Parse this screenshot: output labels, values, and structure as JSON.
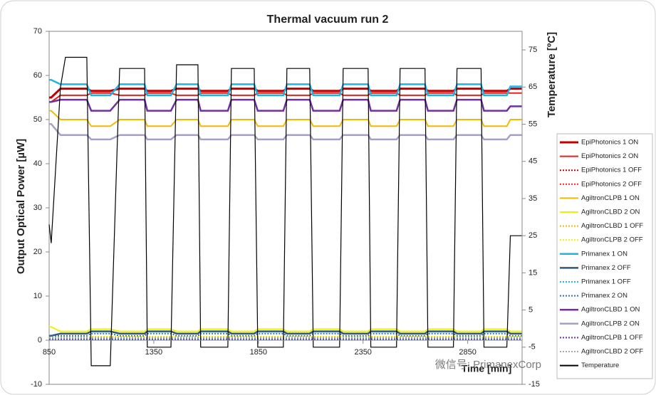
{
  "chart_data": {
    "type": "line",
    "title": "Thermal vacuum run 2",
    "y_label": "Output Optical Power [µW]",
    "y2_label": "Temperature [ºC]",
    "x_label": "Time [min]",
    "watermark": "微信号: PrimanexCorp",
    "xlim": [
      850,
      3110
    ],
    "xticks": [
      850,
      1350,
      1850,
      2350,
      2850
    ],
    "ylim": [
      -10,
      70
    ],
    "yticks": [
      -10,
      0,
      10,
      20,
      30,
      40,
      50,
      60,
      70
    ],
    "y2lim": [
      -15,
      80
    ],
    "y2ticks": [
      -15,
      -5,
      5,
      15,
      25,
      35,
      45,
      55,
      65,
      75
    ],
    "grid": false,
    "legend": "right",
    "x": [
      850,
      860,
      904,
      928,
      1030,
      1051,
      1142,
      1187,
      1306,
      1319,
      1432,
      1459,
      1561,
      1574,
      1704,
      1721,
      1830,
      1847,
      1969,
      1986,
      2095,
      2112,
      2238,
      2255,
      2374,
      2387,
      2510,
      2527,
      2646,
      2660,
      2782,
      2799,
      2914,
      2928,
      3037,
      3054,
      3108
    ],
    "series": [
      {
        "name": "EpiPhotonics 1 ON",
        "color": "#c00000",
        "width": 3,
        "dotted": false,
        "values": [
          55,
          55,
          57,
          57,
          57,
          56.5,
          56.5,
          57,
          57,
          56.5,
          56.5,
          57,
          57,
          56.5,
          56.5,
          57,
          57,
          56.5,
          56.5,
          57,
          57,
          56.5,
          56.5,
          57,
          57,
          56.5,
          56.5,
          57,
          57,
          56.5,
          56.5,
          57,
          57,
          56.5,
          56.5,
          57,
          57
        ]
      },
      {
        "name": "EpiPhotonics 2 ON",
        "color": "#e8201c",
        "width": 2,
        "dotted": false,
        "values": [
          54,
          54,
          55.5,
          55.5,
          55.5,
          56,
          56,
          55.5,
          55.5,
          56,
          56,
          55.5,
          55.5,
          56,
          56,
          55.5,
          55.5,
          56,
          56,
          55.5,
          55.5,
          56,
          56,
          55.5,
          55.5,
          56,
          56,
          55.5,
          55.5,
          56,
          56,
          55.5,
          55.5,
          56,
          56,
          56,
          56
        ]
      },
      {
        "name": "EpiPhotonics 1 OFF",
        "color": "#c00000",
        "width": 2,
        "dotted": true,
        "values": [
          0.3,
          0.3,
          0.3,
          0.3,
          0.3,
          0.3,
          0.3,
          0.3,
          0.3,
          0.3,
          0.3,
          0.3,
          0.3,
          0.3,
          0.3,
          0.3,
          0.3,
          0.3,
          0.3,
          0.3,
          0.3,
          0.3,
          0.3,
          0.3,
          0.3,
          0.3,
          0.3,
          0.3,
          0.3,
          0.3,
          0.3,
          0.3,
          0.3,
          0.3,
          0.3,
          0.3,
          0.3
        ]
      },
      {
        "name": "EpiPhotonics 2 OFF",
        "color": "#ff2020",
        "width": 2,
        "dotted": true,
        "values": [
          0.5,
          0.5,
          0.5,
          0.5,
          0.5,
          0.5,
          0.5,
          0.5,
          0.5,
          0.5,
          0.5,
          0.5,
          0.5,
          0.5,
          0.5,
          0.5,
          0.5,
          0.5,
          0.5,
          0.5,
          0.5,
          0.5,
          0.5,
          0.5,
          0.5,
          0.5,
          0.5,
          0.5,
          0.5,
          0.5,
          0.5,
          0.5,
          0.5,
          0.5,
          0.5,
          0.5,
          0.5
        ]
      },
      {
        "name": "AgiltronCLPB 1 ON",
        "color": "#f5b800",
        "width": 2,
        "dotted": false,
        "values": [
          52,
          52,
          50,
          50,
          50,
          48.5,
          48.5,
          50,
          50,
          48.5,
          48.5,
          50,
          50,
          48.5,
          48.5,
          50,
          50,
          48.5,
          48.5,
          50,
          50,
          48.5,
          48.5,
          50,
          50,
          48.5,
          48.5,
          50,
          50,
          48.5,
          48.5,
          50,
          50,
          48.5,
          48.5,
          50,
          50
        ]
      },
      {
        "name": "AgiltronCLBD 2 ON",
        "color": "#f0f000",
        "width": 2,
        "dotted": false,
        "values": [
          3,
          3,
          2,
          2,
          2,
          2.5,
          2.5,
          2,
          2,
          2.5,
          2.5,
          2,
          2,
          2.5,
          2.5,
          2,
          2,
          2.5,
          2.5,
          2,
          2,
          2.5,
          2.5,
          2,
          2,
          2.5,
          2.5,
          2,
          2,
          2.5,
          2.5,
          2,
          2,
          2.5,
          2.5,
          2,
          2
        ]
      },
      {
        "name": "AgiltronCLBD 1 OFF",
        "color": "#f5b800",
        "width": 2,
        "dotted": true,
        "values": [
          0.2,
          0.2,
          0.2,
          0.2,
          0.2,
          0.2,
          0.2,
          0.2,
          0.2,
          0.2,
          0.2,
          0.2,
          0.2,
          0.2,
          0.2,
          0.2,
          0.2,
          0.2,
          0.2,
          0.2,
          0.2,
          0.2,
          0.2,
          0.2,
          0.2,
          0.2,
          0.2,
          0.2,
          0.2,
          0.2,
          0.2,
          0.2,
          0.2,
          0.2,
          0.2,
          0.2,
          0.2
        ]
      },
      {
        "name": "AgiltronCLPB 2 OFF",
        "color": "#f0f000",
        "width": 2,
        "dotted": true,
        "values": [
          0.8,
          0.8,
          0.8,
          0.8,
          0.8,
          0.8,
          0.8,
          0.8,
          0.8,
          0.8,
          0.8,
          0.8,
          0.8,
          0.8,
          0.8,
          0.8,
          0.8,
          0.8,
          0.8,
          0.8,
          0.8,
          0.8,
          0.8,
          0.8,
          0.8,
          0.8,
          0.8,
          0.8,
          0.8,
          0.8,
          0.8,
          0.8,
          0.8,
          0.8,
          0.8,
          0.8,
          0.8
        ]
      },
      {
        "name": "Primanex 1 ON",
        "color": "#1fb4e6",
        "width": 2.5,
        "dotted": false,
        "values": [
          59,
          59,
          58,
          58,
          58,
          55.5,
          55.5,
          58,
          58,
          55.5,
          55.5,
          58,
          58,
          55.5,
          55.5,
          58,
          58,
          55.5,
          55.5,
          58,
          58,
          55.5,
          55.5,
          58,
          58,
          55.5,
          55.5,
          58,
          58,
          55.5,
          55.5,
          58,
          58,
          55.5,
          55.5,
          57.5,
          57.5
        ]
      },
      {
        "name": "Primanex 2 OFF",
        "color": "#2f5a7a",
        "width": 2.5,
        "dotted": false,
        "values": [
          1,
          1,
          1.5,
          1.5,
          1.5,
          2,
          2,
          1.5,
          1.5,
          2,
          2,
          1.5,
          1.5,
          2,
          2,
          1.5,
          1.5,
          2,
          2,
          1.5,
          1.5,
          2,
          2,
          1.5,
          1.5,
          2,
          2,
          1.5,
          1.5,
          2,
          2,
          1.5,
          1.5,
          2,
          2,
          1.5,
          1.5
        ]
      },
      {
        "name": "Primanex 1 OFF",
        "color": "#1fb4e6",
        "width": 2,
        "dotted": true,
        "values": [
          0.4,
          0.4,
          0.4,
          0.4,
          0.4,
          0.4,
          0.4,
          0.4,
          0.4,
          0.4,
          0.4,
          0.4,
          0.4,
          0.4,
          0.4,
          0.4,
          0.4,
          0.4,
          0.4,
          0.4,
          0.4,
          0.4,
          0.4,
          0.4,
          0.4,
          0.4,
          0.4,
          0.4,
          0.4,
          0.4,
          0.4,
          0.4,
          0.4,
          0.4,
          0.4,
          0.4,
          0.4
        ]
      },
      {
        "name": "Primanex 2 ON",
        "color": "#2a6fb5",
        "width": 2,
        "dotted": true,
        "values": [
          1,
          1,
          1,
          1,
          1,
          1.5,
          1.5,
          1,
          1,
          1.5,
          1.5,
          1,
          1,
          1.5,
          1.5,
          1,
          1,
          1.5,
          1.5,
          1,
          1,
          1.5,
          1.5,
          1,
          1,
          1.5,
          1.5,
          1,
          1,
          1.5,
          1.5,
          1,
          1,
          1.5,
          1.5,
          1,
          1
        ]
      },
      {
        "name": "AgiltronCLBD 1 ON",
        "color": "#7030a0",
        "width": 2.5,
        "dotted": false,
        "values": [
          54,
          54,
          54.5,
          54.5,
          54.5,
          52,
          52,
          54.5,
          54.5,
          52,
          52,
          54.5,
          54.5,
          52,
          52,
          54.5,
          54.5,
          52,
          52,
          54.5,
          54.5,
          52,
          52,
          54.5,
          54.5,
          52,
          52,
          54.5,
          54.5,
          52,
          52,
          54.5,
          54.5,
          52,
          52,
          53,
          53
        ]
      },
      {
        "name": "AgiltronCLPB 2 ON",
        "color": "#a6a0c8",
        "width": 2.5,
        "dotted": false,
        "values": [
          49,
          49,
          46.5,
          46.5,
          46.5,
          45.5,
          45.5,
          46.5,
          46.5,
          45.5,
          45.5,
          46.5,
          46.5,
          45.5,
          45.5,
          46.5,
          46.5,
          45.5,
          45.5,
          46.5,
          46.5,
          45.5,
          45.5,
          46.5,
          46.5,
          45.5,
          45.5,
          46.5,
          46.5,
          45.5,
          45.5,
          46.5,
          46.5,
          45.5,
          45.5,
          46.5,
          46.5
        ]
      },
      {
        "name": "AgiltronCLPB 1 OFF",
        "color": "#7030a0",
        "width": 2,
        "dotted": true,
        "values": [
          0.1,
          0.1,
          0.1,
          0.1,
          0.1,
          0.1,
          0.1,
          0.1,
          0.1,
          0.1,
          0.1,
          0.1,
          0.1,
          0.1,
          0.1,
          0.1,
          0.1,
          0.1,
          0.1,
          0.1,
          0.1,
          0.1,
          0.1,
          0.1,
          0.1,
          0.1,
          0.1,
          0.1,
          0.1,
          0.1,
          0.1,
          0.1,
          0.1,
          0.1,
          0.1,
          0.1,
          0.1
        ]
      },
      {
        "name": "AgiltronCLBD 2 OFF",
        "color": "#a8a8a8",
        "width": 2,
        "dotted": true,
        "values": [
          0.6,
          0.6,
          0.6,
          0.6,
          0.6,
          0.6,
          0.6,
          0.6,
          0.6,
          0.6,
          0.6,
          0.6,
          0.6,
          0.6,
          0.6,
          0.6,
          0.6,
          0.6,
          0.6,
          0.6,
          0.6,
          0.6,
          0.6,
          0.6,
          0.6,
          0.6,
          0.6,
          0.6,
          0.6,
          0.6,
          0.6,
          0.6,
          0.6,
          0.6,
          0.6,
          0.6,
          0.6
        ]
      },
      {
        "name": "Temperature",
        "color": "#000000",
        "width": 1.2,
        "dotted": false,
        "axis": "y2",
        "values": [
          28,
          23,
          65,
          73,
          73,
          -10,
          -10,
          70,
          70,
          -5,
          -5,
          71,
          71,
          -5,
          -5,
          70,
          70,
          -5,
          -5,
          70,
          70,
          -5,
          -5,
          70,
          70,
          -5,
          -5,
          70,
          70,
          -5,
          -5,
          70,
          70,
          -5,
          -5,
          25,
          25
        ]
      }
    ]
  }
}
